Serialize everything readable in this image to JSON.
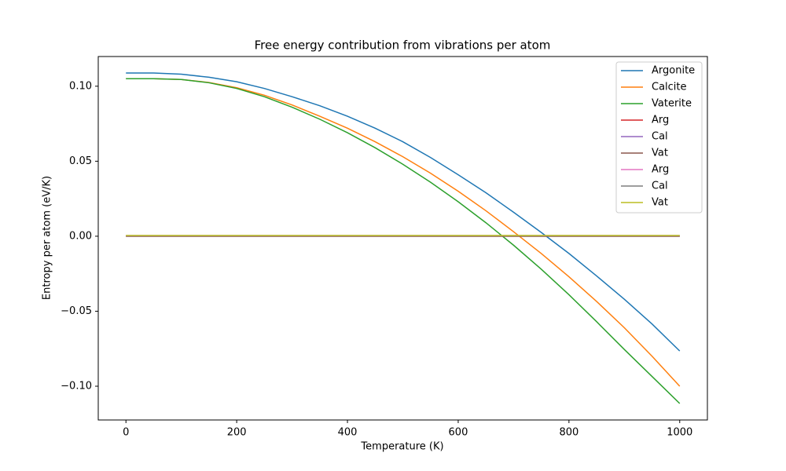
{
  "chart_data": {
    "type": "line",
    "title": "Free energy contribution from vibrations per atom",
    "x_label": "Temperature (K)",
    "y_label": "Entropy per atom (eV/K)",
    "x": [
      0,
      50,
      100,
      150,
      200,
      250,
      300,
      350,
      400,
      450,
      500,
      550,
      600,
      650,
      700,
      750,
      800,
      850,
      900,
      950,
      1000
    ],
    "series": [
      {
        "name": "Argonite",
        "color": "#1f77b4",
        "values": [
          0.1088,
          0.1088,
          0.108,
          0.106,
          0.103,
          0.0985,
          0.093,
          0.087,
          0.08,
          0.072,
          0.063,
          0.0525,
          0.041,
          0.029,
          0.016,
          0.0025,
          -0.0115,
          -0.0265,
          -0.042,
          -0.0585,
          -0.0765
        ]
      },
      {
        "name": "Calcite",
        "color": "#ff7f0e",
        "values": [
          0.105,
          0.105,
          0.1045,
          0.1025,
          0.099,
          0.094,
          0.0875,
          0.08,
          0.072,
          0.063,
          0.053,
          0.042,
          0.03,
          0.017,
          0.003,
          -0.0115,
          -0.027,
          -0.0435,
          -0.061,
          -0.08,
          -0.1
        ]
      },
      {
        "name": "Vaterite",
        "color": "#2ca02c",
        "values": [
          0.105,
          0.105,
          0.1045,
          0.1023,
          0.0985,
          0.093,
          0.086,
          0.078,
          0.069,
          0.059,
          0.048,
          0.036,
          0.023,
          0.009,
          -0.006,
          -0.022,
          -0.039,
          -0.057,
          -0.0755,
          -0.0935,
          -0.1115
        ]
      },
      {
        "name": "Arg",
        "color": "#d62728",
        "values": [
          0,
          0,
          0,
          0,
          0,
          0,
          0,
          0,
          0,
          0,
          0,
          0,
          0,
          0,
          0,
          0,
          0,
          0,
          0,
          0,
          0
        ]
      },
      {
        "name": "Cal",
        "color": "#9467bd",
        "values": [
          0,
          0,
          0,
          0,
          0,
          0,
          0,
          0,
          0,
          0,
          0,
          0,
          0,
          0,
          0,
          0,
          0,
          0,
          0,
          0,
          0
        ]
      },
      {
        "name": "Vat",
        "color": "#8c564b",
        "values": [
          0,
          0,
          0,
          0,
          0,
          0,
          0,
          0,
          0,
          0,
          0,
          0,
          0,
          0,
          0,
          0,
          0,
          0,
          0,
          0,
          0
        ]
      },
      {
        "name": "Arg",
        "color": "#e377c2",
        "values": [
          0.0004,
          0.0004,
          0.0004,
          0.0004,
          0.0004,
          0.0004,
          0.0004,
          0.0004,
          0.0004,
          0.0004,
          0.0004,
          0.0004,
          0.0004,
          0.0004,
          0.0004,
          0.0004,
          0.0004,
          0.0004,
          0.0004,
          0.0004,
          0.0004
        ]
      },
      {
        "name": "Cal",
        "color": "#7f7f7f",
        "values": [
          0.0003,
          0.0003,
          0.0003,
          0.0003,
          0.0003,
          0.0003,
          0.0003,
          0.0003,
          0.0003,
          0.0003,
          0.0003,
          0.0003,
          0.0003,
          0.0003,
          0.0003,
          0.0003,
          0.0003,
          0.0003,
          0.0003,
          0.0003,
          0.0003
        ]
      },
      {
        "name": "Vat",
        "color": "#bcbd22",
        "values": [
          0.0005,
          0.0005,
          0.0005,
          0.0005,
          0.0005,
          0.0005,
          0.0005,
          0.0005,
          0.0005,
          0.0005,
          0.0005,
          0.0005,
          0.0005,
          0.0005,
          0.0005,
          0.0005,
          0.0005,
          0.0005,
          0.0005,
          0.0005,
          0.0005
        ]
      }
    ],
    "xlim": [
      -50,
      1050
    ],
    "ylim": [
      -0.1225,
      0.1198
    ],
    "xticks": [
      0,
      200,
      400,
      600,
      800,
      1000
    ],
    "yticks": [
      {
        "value": -0.1,
        "label": "−0.10"
      },
      {
        "value": -0.05,
        "label": "−0.05"
      },
      {
        "value": 0,
        "label": "0.00"
      },
      {
        "value": 0.05,
        "label": "0.05"
      },
      {
        "value": 0.1,
        "label": "0.10"
      }
    ],
    "legend": "upper right"
  }
}
